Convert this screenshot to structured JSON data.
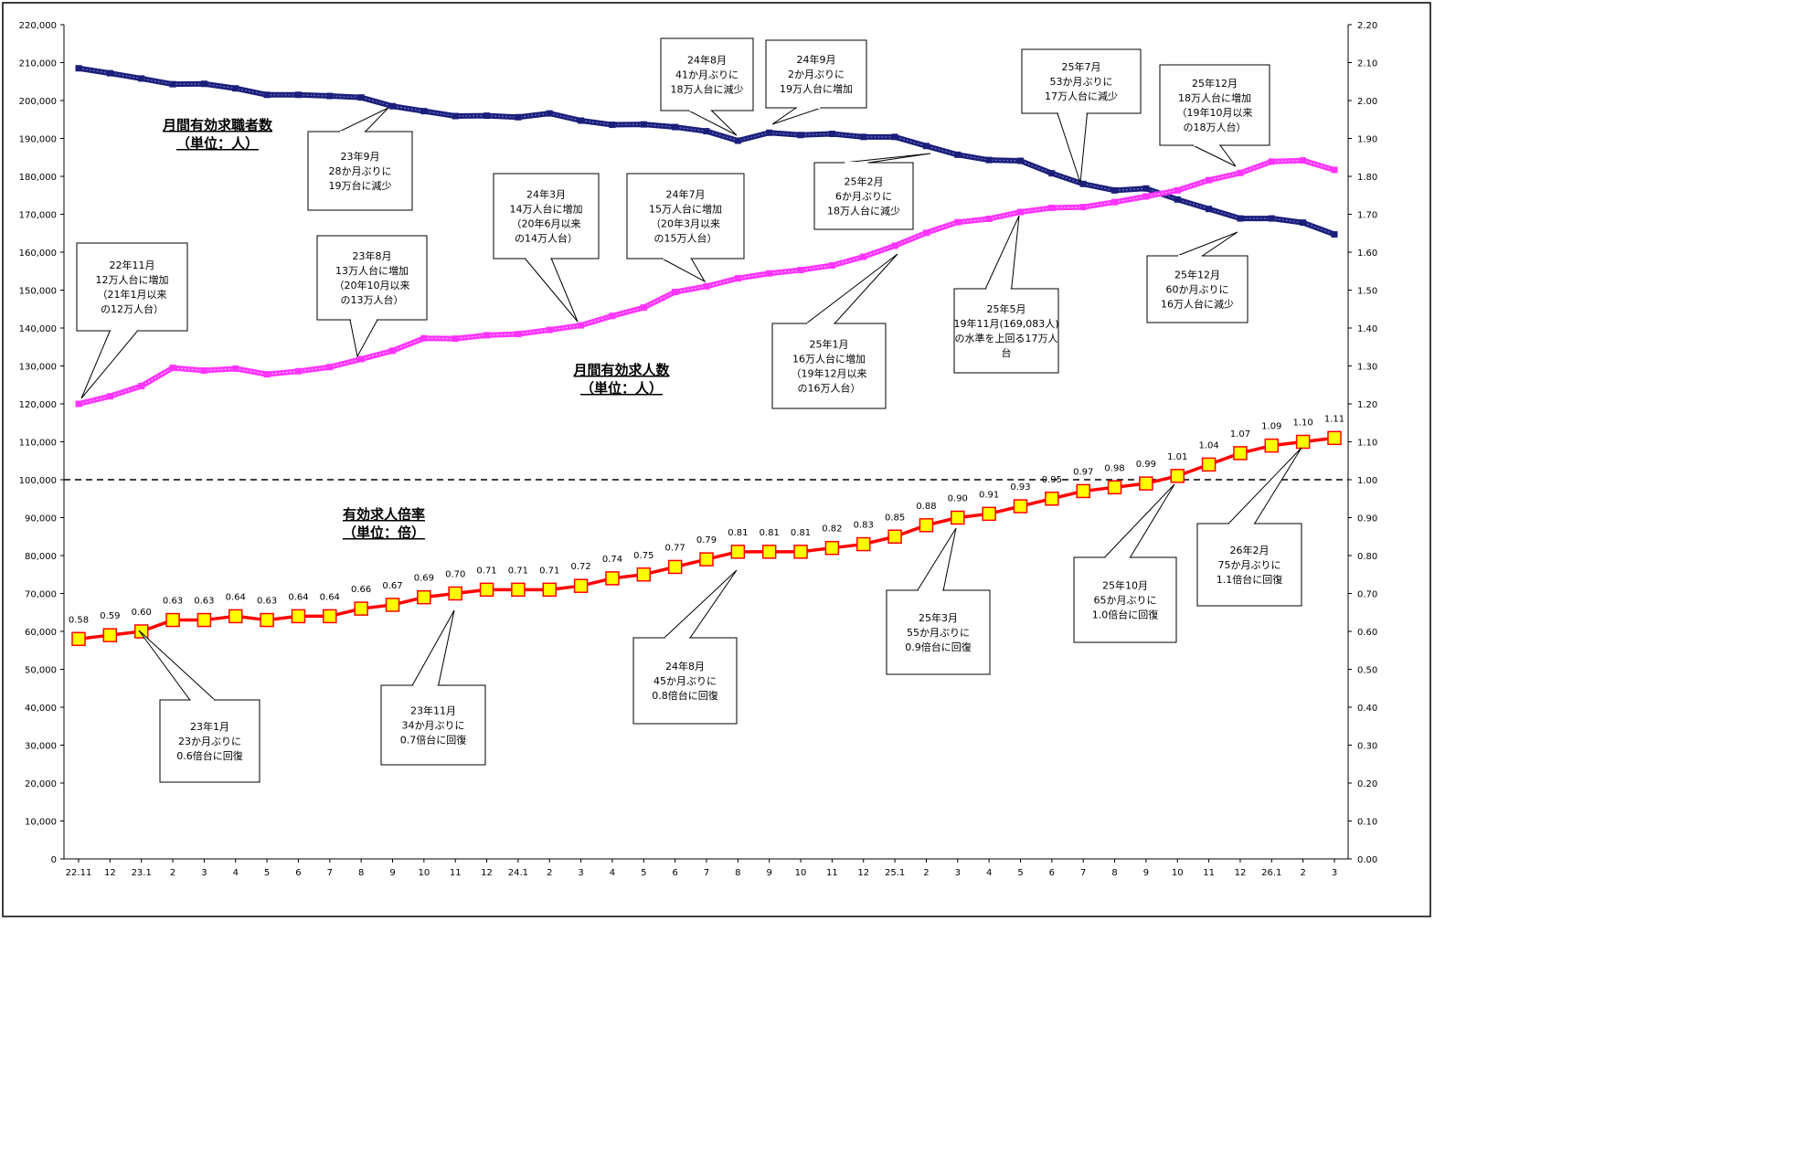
{
  "chart_data": {
    "type": "line",
    "categories": [
      "22.11",
      "12",
      "23.1",
      "2",
      "3",
      "4",
      "5",
      "6",
      "7",
      "8",
      "9",
      "10",
      "11",
      "12",
      "24.1",
      "2",
      "3",
      "4",
      "5",
      "6",
      "7",
      "8",
      "9",
      "10",
      "11",
      "12",
      "25.1",
      "2",
      "3",
      "4",
      "5",
      "6",
      "7",
      "8",
      "9",
      "10",
      "11",
      "12",
      "26.1",
      "2",
      "3"
    ],
    "y_left": {
      "ylim": [
        0,
        220000
      ],
      "ticks": [
        "0",
        "10,000",
        "20,000",
        "30,000",
        "40,000",
        "50,000",
        "60,000",
        "70,000",
        "80,000",
        "90,000",
        "100,000",
        "110,000",
        "120,000",
        "130,000",
        "140,000",
        "150,000",
        "160,000",
        "170,000",
        "180,000",
        "190,000",
        "200,000",
        "210,000",
        "220,000"
      ]
    },
    "y_right": {
      "ylim": [
        0,
        2.2
      ],
      "ticks": [
        "0.00",
        "0.10",
        "0.20",
        "0.30",
        "0.40",
        "0.50",
        "0.60",
        "0.70",
        "0.80",
        "0.90",
        "1.00",
        "1.10",
        "1.20",
        "1.30",
        "1.40",
        "1.50",
        "1.60",
        "1.70",
        "1.80",
        "1.90",
        "2.00",
        "2.10",
        "2.20"
      ]
    },
    "reference_line": {
      "axis": "right",
      "value": 1.0,
      "style": "dashed"
    },
    "series": [
      {
        "name": "月間有効求職者数",
        "axis": "left",
        "color": "#1b1f7a",
        "values": [
          208500,
          207200,
          205800,
          204300,
          204400,
          203200,
          201500,
          201500,
          201200,
          200800,
          198500,
          197200,
          195900,
          196000,
          195600,
          196600,
          194700,
          193600,
          193700,
          193000,
          191900,
          189400,
          191500,
          190900,
          191200,
          190400,
          190400,
          188000,
          185700,
          184300,
          184100,
          180800,
          178000,
          176300,
          176800,
          173900,
          171400,
          168900,
          168900,
          167800,
          164700
        ]
      },
      {
        "name": "月間有効求人数",
        "axis": "left",
        "color": "#ff33ff",
        "values": [
          120000,
          122000,
          124700,
          129500,
          128800,
          129300,
          127800,
          128600,
          129700,
          131800,
          134000,
          137300,
          137200,
          138100,
          138400,
          139500,
          140700,
          143200,
          145400,
          149500,
          151000,
          153100,
          154400,
          155300,
          156500,
          158800,
          161700,
          165100,
          167900,
          168800,
          170600,
          171700,
          171900,
          173200,
          174700,
          176300,
          179000,
          180900,
          183900,
          184200,
          181700
        ]
      },
      {
        "name": "有効求人倍率",
        "axis": "right",
        "color": "#ff0000",
        "marker_fill": "#ffff00",
        "values": [
          0.58,
          0.59,
          0.6,
          0.63,
          0.63,
          0.64,
          0.63,
          0.64,
          0.64,
          0.66,
          0.67,
          0.69,
          0.7,
          0.71,
          0.71,
          0.71,
          0.72,
          0.74,
          0.75,
          0.77,
          0.79,
          0.81,
          0.81,
          0.81,
          0.82,
          0.83,
          0.85,
          0.88,
          0.9,
          0.91,
          0.93,
          0.95,
          0.97,
          0.98,
          0.99,
          1.01,
          1.04,
          1.07,
          1.09,
          1.1,
          1.11
        ],
        "labels": [
          "0.58",
          "0.59",
          "0.60",
          "0.63",
          "0.63",
          "0.64",
          "0.63",
          "0.64",
          "0.64",
          "0.66",
          "0.67",
          "0.69",
          "0.70",
          "0.71",
          "0.71",
          "0.71",
          "0.72",
          "0.74",
          "0.75",
          "0.77",
          "0.79",
          "0.81",
          "0.81",
          "0.81",
          "0.82",
          "0.83",
          "0.85",
          "0.88",
          "0.90",
          "0.91",
          "0.93",
          "0.95",
          "0.97",
          "0.98",
          "0.99",
          "1.01",
          "1.04",
          "1.07",
          "1.09",
          "1.10",
          "1.11"
        ]
      }
    ],
    "series_titles": [
      {
        "line1": "月間有効求職者数",
        "line2": "（単位：人）"
      },
      {
        "line1": "月間有効求人数",
        "line2": "（単位：人）"
      },
      {
        "line1": "有効求人倍率",
        "line2": "（単位：倍）"
      }
    ],
    "annotations": [
      {
        "lines": [
          "22年11月",
          "12万人台に増加",
          "（21年1月以来",
          "の12万人台）"
        ]
      },
      {
        "lines": [
          "23年9月",
          "28か月ぶりに",
          "19万台に減少"
        ]
      },
      {
        "lines": [
          "23年8月",
          "13万人台に増加",
          "（20年10月以来",
          "の13万人台）"
        ]
      },
      {
        "lines": [
          "24年3月",
          "14万人台に増加",
          "（20年6月以来",
          "の14万人台）"
        ]
      },
      {
        "lines": [
          "24年7月",
          "15万人台に増加",
          "（20年3月以来",
          "の15万人台）"
        ]
      },
      {
        "lines": [
          "24年8月",
          "41か月ぶりに",
          "18万人台に減少"
        ]
      },
      {
        "lines": [
          "24年9月",
          "2か月ぶりに",
          "19万人台に増加"
        ]
      },
      {
        "lines": [
          "25年2月",
          "6か月ぶりに",
          "18万人台に減少"
        ]
      },
      {
        "lines": [
          "25年1月",
          "16万人台に増加",
          "（19年12月以来",
          "の16万人台）"
        ]
      },
      {
        "lines": [
          "25年5月",
          "19年11月(169,083人)",
          "の水準を上回る17万人",
          "台"
        ]
      },
      {
        "lines": [
          "25年7月",
          "53か月ぶりに",
          "17万人台に減少"
        ]
      },
      {
        "lines": [
          "25年12月",
          "18万人台に増加",
          "（19年10月以来",
          "の18万人台）"
        ]
      },
      {
        "lines": [
          "25年12月",
          "60か月ぶりに",
          "16万人台に減少"
        ]
      },
      {
        "lines": [
          "23年1月",
          "23か月ぶりに",
          "0.6倍台に回復"
        ]
      },
      {
        "lines": [
          "23年11月",
          "34か月ぶりに",
          "0.7倍台に回復"
        ]
      },
      {
        "lines": [
          "24年8月",
          "45か月ぶりに",
          "0.8倍台に回復"
        ]
      },
      {
        "lines": [
          "25年3月",
          "55か月ぶりに",
          "0.9倍台に回復"
        ]
      },
      {
        "lines": [
          "25年10月",
          "65か月ぶりに",
          "1.0倍台に回復"
        ]
      },
      {
        "lines": [
          "26年2月",
          "75か月ぶりに",
          "1.1倍台に回復"
        ]
      }
    ],
    "grid": false,
    "legend": "none"
  }
}
